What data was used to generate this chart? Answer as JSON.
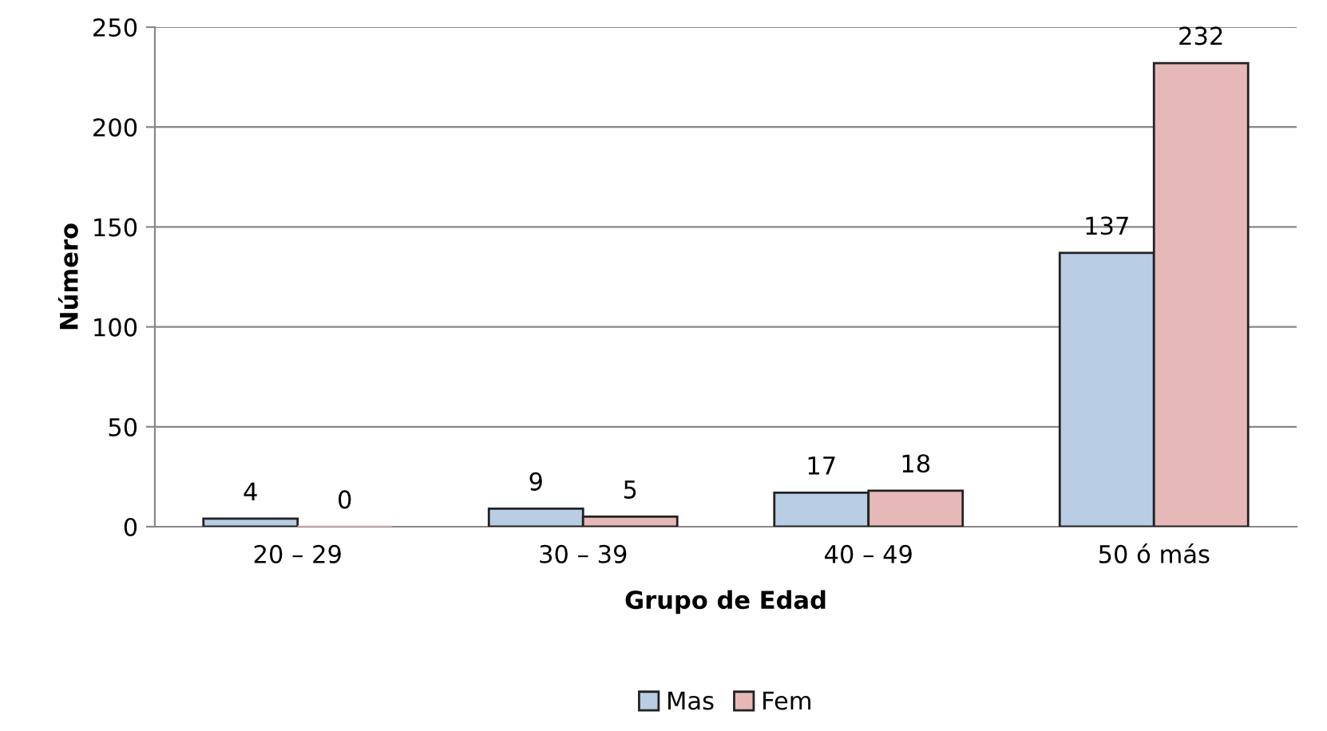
{
  "chart_data": {
    "type": "bar",
    "xlabel": "Grupo de Edad",
    "ylabel": "Número",
    "categories": [
      "20 – 29",
      "30 – 39",
      "40 – 49",
      "50 ó más"
    ],
    "series": [
      {
        "name": "Mas",
        "color": "#b9cde5",
        "values": [
          4,
          9,
          17,
          137
        ]
      },
      {
        "name": "Fem",
        "color": "#e6b9b8",
        "values": [
          0,
          5,
          18,
          232
        ]
      }
    ],
    "ylim": [
      0,
      250
    ],
    "yticks": [
      0,
      50,
      100,
      150,
      200,
      250
    ],
    "grid": "y",
    "legend": "bottom",
    "data_labels": true
  }
}
